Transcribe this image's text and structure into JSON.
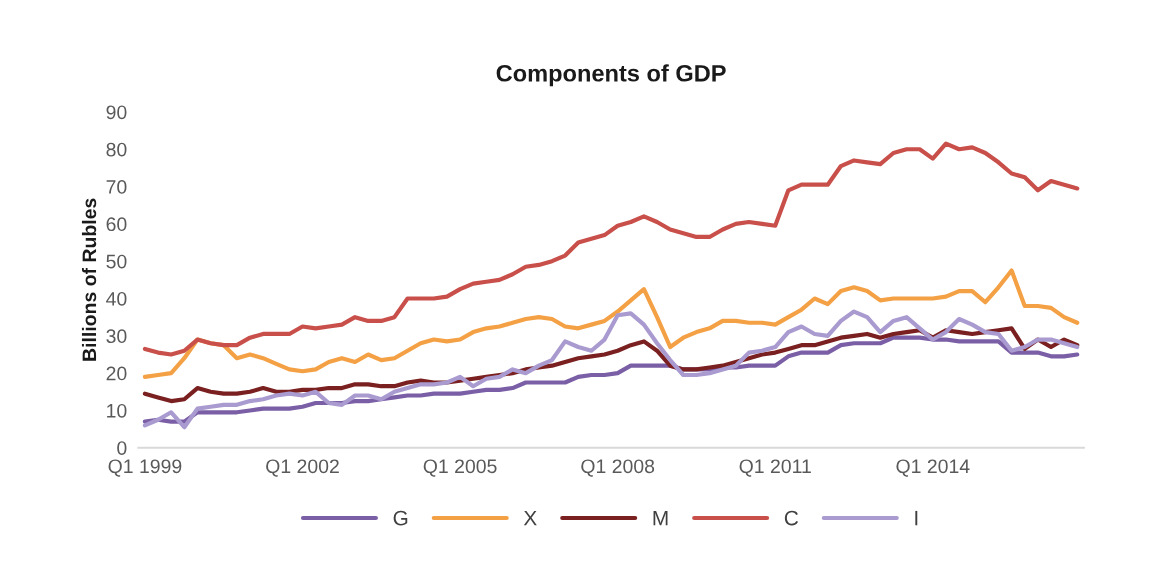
{
  "chart_data": {
    "type": "line",
    "title": "Components of GDP",
    "ylabel": "Billions of Rubles",
    "categories": [
      "Q1 1999",
      null,
      null,
      null,
      null,
      null,
      null,
      null,
      null,
      null,
      null,
      null,
      "Q1 2002",
      null,
      null,
      null,
      null,
      null,
      null,
      null,
      null,
      null,
      null,
      null,
      "Q1 2005",
      null,
      null,
      null,
      null,
      null,
      null,
      null,
      null,
      null,
      null,
      null,
      "Q1 2008",
      null,
      null,
      null,
      null,
      null,
      null,
      null,
      null,
      null,
      null,
      null,
      "Q1 2011",
      null,
      null,
      null,
      null,
      null,
      null,
      null,
      null,
      null,
      null,
      null,
      "Q1 2014",
      null,
      null,
      null,
      null,
      null,
      null,
      null,
      null,
      null,
      null,
      null
    ],
    "ylim": [
      0,
      90
    ],
    "yticks": [
      0,
      10,
      20,
      30,
      40,
      50,
      60,
      70,
      80,
      90
    ],
    "grid": false,
    "legend": "bottom",
    "marker": "none",
    "line_style": "solid",
    "series": [
      {
        "name": "G",
        "color": "#7b5fa6",
        "values": [
          7,
          7.5,
          7,
          7,
          9.5,
          9.5,
          9.5,
          9.5,
          10,
          10.5,
          10.5,
          10.5,
          11,
          12,
          12,
          12,
          12.5,
          12.5,
          13,
          13.5,
          14,
          14,
          14.5,
          14.5,
          14.5,
          15,
          15.5,
          15.5,
          16,
          17.5,
          17.5,
          17.5,
          17.5,
          19,
          19.5,
          19.5,
          20,
          22,
          22,
          22,
          22,
          21,
          21,
          21,
          21.5,
          21.5,
          22,
          22,
          22,
          24.5,
          25.5,
          25.5,
          25.5,
          27.5,
          28,
          28,
          28,
          29.5,
          29.5,
          29.5,
          29,
          29,
          28.5,
          28.5,
          28.5,
          28.5,
          25.5,
          25.5,
          25.5,
          24.5,
          24.5,
          25
        ]
      },
      {
        "name": "X",
        "color": "#f4a045",
        "values": [
          19,
          19.5,
          20,
          24,
          29,
          28,
          27.5,
          24,
          25,
          24,
          22.5,
          21,
          20.5,
          21,
          23,
          24,
          23,
          25,
          23.5,
          24,
          26,
          28,
          29,
          28.5,
          29,
          31,
          32,
          32.5,
          33.5,
          34.5,
          35,
          34.5,
          32.5,
          32,
          33,
          34,
          36.5,
          39.5,
          42.5,
          35,
          27,
          29.5,
          31,
          32,
          34,
          34,
          33.5,
          33.5,
          33,
          35,
          37,
          40,
          38.5,
          42,
          43,
          42,
          39.5,
          40,
          40,
          40,
          40,
          40.5,
          42,
          42,
          39,
          43,
          47.5,
          38,
          38,
          37.5,
          35,
          33.5
        ]
      },
      {
        "name": "M",
        "color": "#7a2020",
        "values": [
          14.5,
          13.5,
          12.5,
          13,
          16,
          15,
          14.5,
          14.5,
          15,
          16,
          15,
          15,
          15.5,
          15.5,
          16,
          16,
          17,
          17,
          16.5,
          16.5,
          17.5,
          18,
          17.5,
          17.5,
          18,
          18.5,
          19,
          19.5,
          20,
          21,
          21.5,
          22,
          23,
          24,
          24.5,
          25,
          26,
          27.5,
          28.5,
          26,
          22,
          21,
          21,
          21.5,
          22,
          23,
          24,
          25,
          25.5,
          26.5,
          27.5,
          27.5,
          28.5,
          29.5,
          30,
          30.5,
          29.5,
          30.5,
          31,
          31.5,
          29.5,
          31.5,
          31,
          30.5,
          31,
          31.5,
          32,
          26.5,
          29,
          27,
          29,
          27.5
        ]
      },
      {
        "name": "C",
        "color": "#c9504a",
        "values": [
          26.5,
          25.5,
          25,
          26,
          29,
          28,
          27.5,
          27.5,
          29.5,
          30.5,
          30.5,
          30.5,
          32.5,
          32,
          32.5,
          33,
          35,
          34,
          34,
          35,
          40,
          40,
          40,
          40.5,
          42.5,
          44,
          44.5,
          45,
          46.5,
          48.5,
          49,
          50,
          51.5,
          55,
          56,
          57,
          59.5,
          60.5,
          62,
          60.5,
          58.5,
          57.5,
          56.5,
          56.5,
          58.5,
          60,
          60.5,
          60,
          59.5,
          69,
          70.5,
          70.5,
          70.5,
          75.5,
          77,
          76.5,
          76,
          79,
          80,
          80,
          77.5,
          81.5,
          80,
          80.5,
          79,
          76.5,
          73.5,
          72.5,
          69,
          71.5,
          70.5,
          69.5
        ]
      },
      {
        "name": "I",
        "color": "#a99ad0",
        "values": [
          6,
          7.5,
          9.5,
          5.5,
          10.5,
          11,
          11.5,
          11.5,
          12.5,
          13,
          14,
          14.5,
          14,
          15,
          12,
          11.5,
          14,
          14,
          13,
          15,
          16,
          17,
          17,
          17.5,
          19,
          16.5,
          18.5,
          19,
          21,
          20,
          22,
          23.5,
          28.5,
          27,
          26,
          29,
          35.5,
          36,
          33,
          28,
          23.5,
          19.5,
          19.5,
          20,
          21,
          22,
          25.5,
          26,
          27,
          31,
          32.5,
          30.5,
          30,
          34,
          36.5,
          35,
          31,
          34,
          35,
          32,
          29,
          31,
          34.5,
          33,
          31,
          30.5,
          26,
          27,
          29,
          29,
          28,
          27
        ]
      }
    ]
  }
}
